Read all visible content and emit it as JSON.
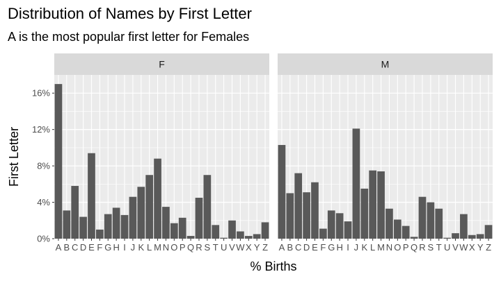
{
  "chart_data": {
    "type": "bar",
    "title": "Distribution of Names by First Letter",
    "subtitle": "A is the most popular first letter for Females",
    "xlabel": "% Births",
    "ylabel": "First Letter",
    "ylim": [
      0,
      0.18
    ],
    "yticks": [
      0,
      0.04,
      0.08,
      0.12,
      0.16
    ],
    "ytick_labels": [
      "0%",
      "4%",
      "8%",
      "12%",
      "16%"
    ],
    "categories": [
      "A",
      "B",
      "C",
      "D",
      "E",
      "F",
      "G",
      "H",
      "I",
      "J",
      "K",
      "L",
      "M",
      "N",
      "O",
      "P",
      "Q",
      "R",
      "S",
      "T",
      "U",
      "V",
      "W",
      "X",
      "Y",
      "Z"
    ],
    "facets": [
      {
        "name": "F",
        "values": [
          0.17,
          0.031,
          0.058,
          0.024,
          0.094,
          0.01,
          0.027,
          0.034,
          0.026,
          0.046,
          0.057,
          0.07,
          0.088,
          0.035,
          0.017,
          0.023,
          0.003,
          0.045,
          0.07,
          0.015,
          0.001,
          0.02,
          0.008,
          0.003,
          0.005,
          0.018
        ]
      },
      {
        "name": "M",
        "values": [
          0.103,
          0.05,
          0.072,
          0.051,
          0.062,
          0.011,
          0.031,
          0.028,
          0.019,
          0.121,
          0.055,
          0.075,
          0.074,
          0.033,
          0.021,
          0.014,
          0.002,
          0.046,
          0.04,
          0.033,
          0.001,
          0.006,
          0.027,
          0.004,
          0.005,
          0.015
        ]
      }
    ],
    "grid": true,
    "legend": "none",
    "colors": {
      "panel_bg": "#ebebeb",
      "strip_bg": "#d9d9d9",
      "bar": "#595959",
      "grid_major": "#ffffff",
      "axis_text": "#4d4d4d"
    }
  }
}
